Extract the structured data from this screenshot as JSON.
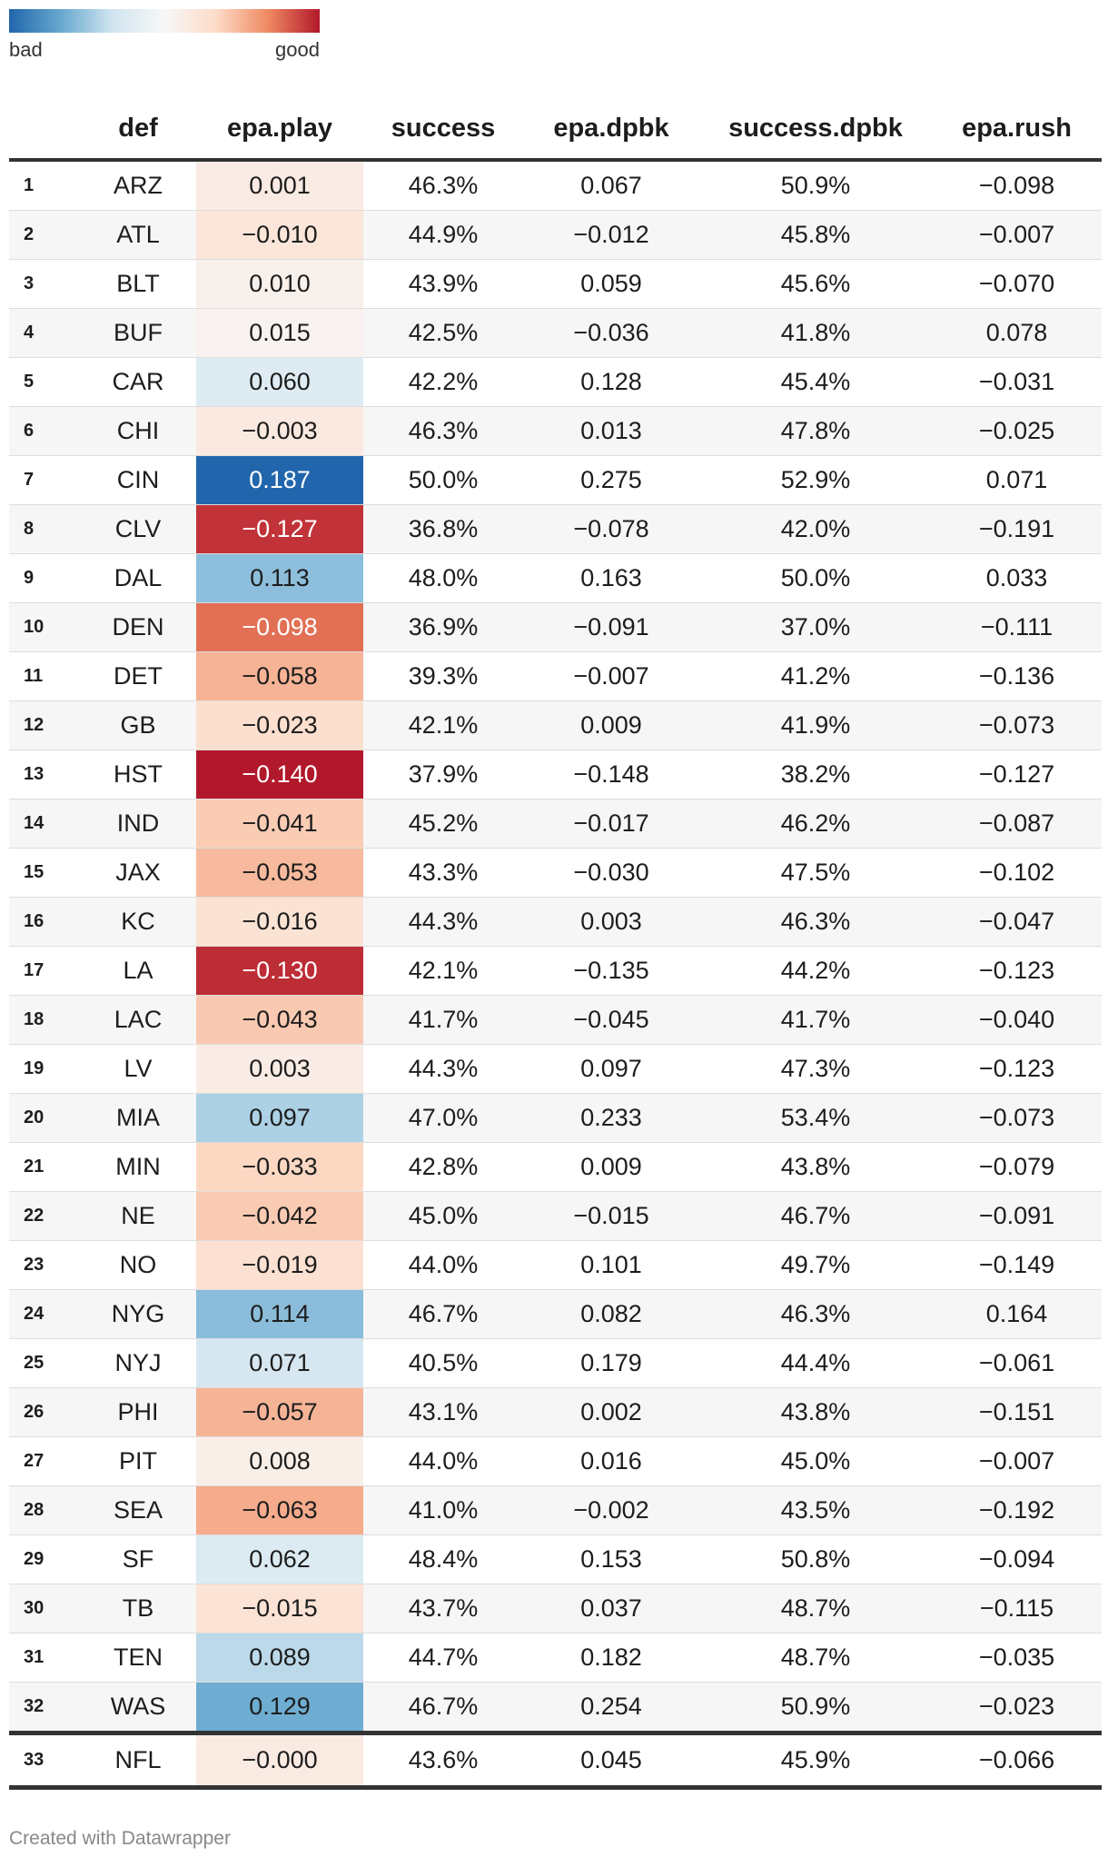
{
  "legend": {
    "low_label": "bad",
    "high_label": "good",
    "colors": [
      "#2166ac",
      "#67a9cf",
      "#d1e5f0",
      "#f7f7f7",
      "#fddbc7",
      "#ef8a62",
      "#b2182b"
    ]
  },
  "footer": {
    "text": "Created with Datawrapper"
  },
  "chart_data": {
    "type": "table",
    "columns": [
      "",
      "def",
      "epa.play",
      "success",
      "epa.dpbk",
      "success.dpbk",
      "epa.rush"
    ],
    "heatmap_column": "epa.play",
    "heatmap_range": [
      -0.14,
      0.187
    ],
    "rows": [
      [
        "1",
        "ARZ",
        "0.001",
        "46.3%",
        "0.067",
        "50.9%",
        "−0.098"
      ],
      [
        "2",
        "ATL",
        "−0.010",
        "44.9%",
        "−0.012",
        "45.8%",
        "−0.007"
      ],
      [
        "3",
        "BLT",
        "0.010",
        "43.9%",
        "0.059",
        "45.6%",
        "−0.070"
      ],
      [
        "4",
        "BUF",
        "0.015",
        "42.5%",
        "−0.036",
        "41.8%",
        "0.078"
      ],
      [
        "5",
        "CAR",
        "0.060",
        "42.2%",
        "0.128",
        "45.4%",
        "−0.031"
      ],
      [
        "6",
        "CHI",
        "−0.003",
        "46.3%",
        "0.013",
        "47.8%",
        "−0.025"
      ],
      [
        "7",
        "CIN",
        "0.187",
        "50.0%",
        "0.275",
        "52.9%",
        "0.071"
      ],
      [
        "8",
        "CLV",
        "−0.127",
        "36.8%",
        "−0.078",
        "42.0%",
        "−0.191"
      ],
      [
        "9",
        "DAL",
        "0.113",
        "48.0%",
        "0.163",
        "50.0%",
        "0.033"
      ],
      [
        "10",
        "DEN",
        "−0.098",
        "36.9%",
        "−0.091",
        "37.0%",
        "−0.111"
      ],
      [
        "11",
        "DET",
        "−0.058",
        "39.3%",
        "−0.007",
        "41.2%",
        "−0.136"
      ],
      [
        "12",
        "GB",
        "−0.023",
        "42.1%",
        "0.009",
        "41.9%",
        "−0.073"
      ],
      [
        "13",
        "HST",
        "−0.140",
        "37.9%",
        "−0.148",
        "38.2%",
        "−0.127"
      ],
      [
        "14",
        "IND",
        "−0.041",
        "45.2%",
        "−0.017",
        "46.2%",
        "−0.087"
      ],
      [
        "15",
        "JAX",
        "−0.053",
        "43.3%",
        "−0.030",
        "47.5%",
        "−0.102"
      ],
      [
        "16",
        "KC",
        "−0.016",
        "44.3%",
        "0.003",
        "46.3%",
        "−0.047"
      ],
      [
        "17",
        "LA",
        "−0.130",
        "42.1%",
        "−0.135",
        "44.2%",
        "−0.123"
      ],
      [
        "18",
        "LAC",
        "−0.043",
        "41.7%",
        "−0.045",
        "41.7%",
        "−0.040"
      ],
      [
        "19",
        "LV",
        "0.003",
        "44.3%",
        "0.097",
        "47.3%",
        "−0.123"
      ],
      [
        "20",
        "MIA",
        "0.097",
        "47.0%",
        "0.233",
        "53.4%",
        "−0.073"
      ],
      [
        "21",
        "MIN",
        "−0.033",
        "42.8%",
        "0.009",
        "43.8%",
        "−0.079"
      ],
      [
        "22",
        "NE",
        "−0.042",
        "45.0%",
        "−0.015",
        "46.7%",
        "−0.091"
      ],
      [
        "23",
        "NO",
        "−0.019",
        "44.0%",
        "0.101",
        "49.7%",
        "−0.149"
      ],
      [
        "24",
        "NYG",
        "0.114",
        "46.7%",
        "0.082",
        "46.3%",
        "0.164"
      ],
      [
        "25",
        "NYJ",
        "0.071",
        "40.5%",
        "0.179",
        "44.4%",
        "−0.061"
      ],
      [
        "26",
        "PHI",
        "−0.057",
        "43.1%",
        "0.002",
        "43.8%",
        "−0.151"
      ],
      [
        "27",
        "PIT",
        "0.008",
        "44.0%",
        "0.016",
        "45.0%",
        "−0.007"
      ],
      [
        "28",
        "SEA",
        "−0.063",
        "41.0%",
        "−0.002",
        "43.5%",
        "−0.192"
      ],
      [
        "29",
        "SF",
        "0.062",
        "48.4%",
        "0.153",
        "50.8%",
        "−0.094"
      ],
      [
        "30",
        "TB",
        "−0.015",
        "43.7%",
        "0.037",
        "48.7%",
        "−0.115"
      ],
      [
        "31",
        "TEN",
        "0.089",
        "44.7%",
        "0.182",
        "48.7%",
        "−0.035"
      ],
      [
        "32",
        "WAS",
        "0.129",
        "46.7%",
        "0.254",
        "50.9%",
        "−0.023"
      ]
    ],
    "total_row": [
      "33",
      "NFL",
      "−0.000",
      "43.6%",
      "0.045",
      "45.9%",
      "−0.066"
    ]
  }
}
